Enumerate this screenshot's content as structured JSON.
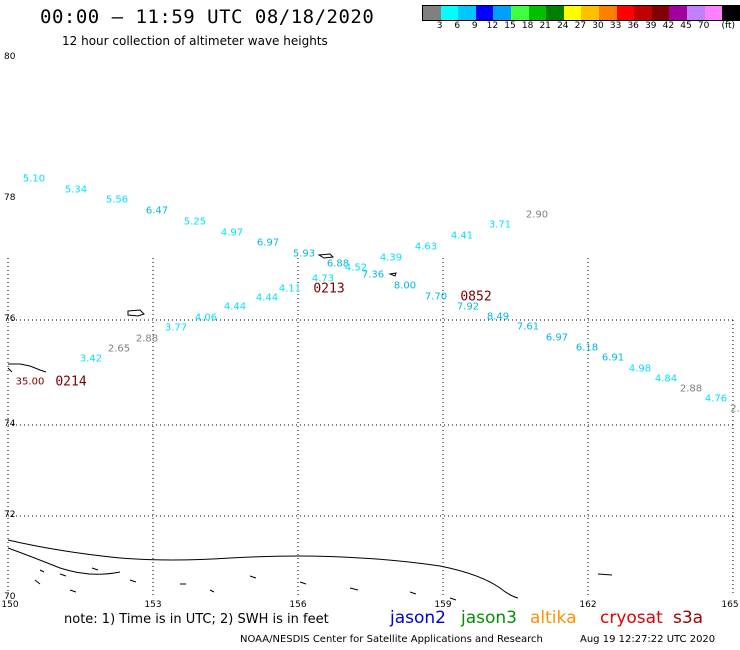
{
  "header": {
    "title": "00:00 – 11:59 UTC 08/18/2020",
    "subtitle": "12 hour collection of altimeter wave heights"
  },
  "colorbar": {
    "colors": [
      "#808080",
      "#00ffff",
      "#00c8ff",
      "#0000ff",
      "#00a0ff",
      "#40ff40",
      "#00c000",
      "#008000",
      "#ffff00",
      "#ffc000",
      "#ff8000",
      "#ff0000",
      "#c00000",
      "#800000",
      "#a000a0",
      "#c080ff",
      "#ff80ff",
      "#000000"
    ],
    "tick_labels": [
      "3",
      "6",
      "9",
      "12",
      "15",
      "18",
      "21",
      "24",
      "27",
      "30",
      "33",
      "36",
      "39",
      "42",
      "45",
      "70",
      "(ft)"
    ]
  },
  "map": {
    "lat_labels": [
      "80",
      "78",
      "76",
      "74",
      "72",
      "70"
    ],
    "lon_labels": [
      "150",
      "153",
      "156",
      "159",
      "162",
      "165"
    ]
  },
  "wave_heights": [
    {
      "v": "5.10",
      "c": "#00e0ff"
    },
    {
      "v": "5.34",
      "c": "#00e0ff"
    },
    {
      "v": "5.56",
      "c": "#00e0ff"
    },
    {
      "v": "6.47",
      "c": "#00b8e0"
    },
    {
      "v": "5.25",
      "c": "#00e0ff"
    },
    {
      "v": "4.97",
      "c": "#00e0ff"
    },
    {
      "v": "6.97",
      "c": "#00b8e0"
    },
    {
      "v": "5.93",
      "c": "#00b8e0"
    },
    {
      "v": "6.88",
      "c": "#00b8e0"
    },
    {
      "v": "4.52",
      "c": "#00e0ff"
    },
    {
      "v": "7.36",
      "c": "#00b8e0"
    },
    {
      "v": "4.39",
      "c": "#00e0ff"
    },
    {
      "v": "8.00",
      "c": "#00b8e0"
    },
    {
      "v": "4.63",
      "c": "#00e0ff"
    },
    {
      "v": "7.70",
      "c": "#00b8e0"
    },
    {
      "v": "7.92",
      "c": "#00b8e0"
    },
    {
      "v": "4.41",
      "c": "#00e0ff"
    },
    {
      "v": "3.71",
      "c": "#00e0ff"
    },
    {
      "v": "2.90",
      "c": "#808080"
    },
    {
      "v": "8.49",
      "c": "#00b8e0"
    },
    {
      "v": "7.61",
      "c": "#00b8e0"
    },
    {
      "v": "6.97",
      "c": "#00b8e0"
    },
    {
      "v": "6.18",
      "c": "#00b8e0"
    },
    {
      "v": "6.91",
      "c": "#00b8e0"
    },
    {
      "v": "4.98",
      "c": "#00e0ff"
    },
    {
      "v": "4.84",
      "c": "#00e0ff"
    },
    {
      "v": "2.88",
      "c": "#808080"
    },
    {
      "v": "4.76",
      "c": "#00e0ff"
    },
    {
      "v": "2.",
      "c": "#808080"
    },
    {
      "v": "4.73",
      "c": "#00e0ff"
    },
    {
      "v": "4.11",
      "c": "#00e0ff"
    },
    {
      "v": "4.44",
      "c": "#00e0ff"
    },
    {
      "v": "4.44",
      "c": "#00e0ff"
    },
    {
      "v": "4.06",
      "c": "#00e0ff"
    },
    {
      "v": "3.77",
      "c": "#00e0ff"
    },
    {
      "v": "2.88",
      "c": "#808080"
    },
    {
      "v": "2.65",
      "c": "#808080"
    },
    {
      "v": "3.42",
      "c": "#00e0ff"
    },
    {
      "v": "35.00",
      "c": "#7a0000"
    }
  ],
  "pass_times": [
    "0213",
    "0852",
    "0214"
  ],
  "footer": {
    "note": "note: 1) Time is in UTC; 2) SWH is in feet",
    "satellites": [
      {
        "name": "jason2",
        "color": "#0000d0"
      },
      {
        "name": "jason3",
        "color": "#009000"
      },
      {
        "name": "altika",
        "color": "#ff9000"
      },
      {
        "name": "cryosat",
        "color": "#e00000"
      },
      {
        "name": "s3a",
        "color": "#a00000"
      }
    ],
    "credit": "NOAA/NESDIS Center for Satellite Applications and Research",
    "timestamp": "Aug 19 12:27:22 UTC 2020"
  }
}
